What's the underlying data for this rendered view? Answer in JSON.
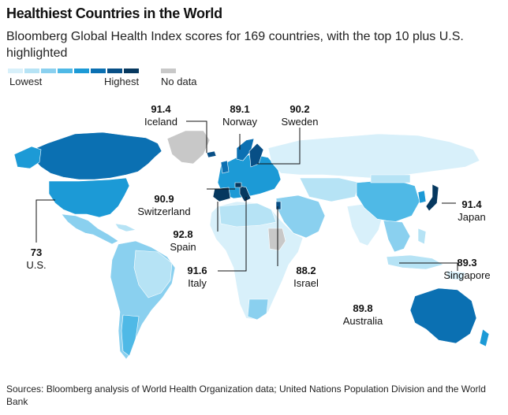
{
  "title": "Healthiest Countries in the World",
  "subtitle": "Bloomberg Global Health Index scores for 169 countries, with the top 10 plus U.S. highlighted",
  "legend": {
    "lowest_label": "Lowest",
    "highest_label": "Highest",
    "no_data_label": "No data",
    "scale_colors": [
      "#d8f0fa",
      "#b6e3f5",
      "#8ad0ef",
      "#4fb9e6",
      "#1c9ad6",
      "#0b70b2",
      "#084f86",
      "#06385f"
    ],
    "no_data_color": "#c8c8c8"
  },
  "highlighted": [
    {
      "country": "Iceland",
      "score": "91.4"
    },
    {
      "country": "Norway",
      "score": "89.1"
    },
    {
      "country": "Sweden",
      "score": "90.2"
    },
    {
      "country": "Switzerland",
      "score": "90.9"
    },
    {
      "country": "Japan",
      "score": "91.4"
    },
    {
      "country": "Spain",
      "score": "92.8"
    },
    {
      "country": "U.S.",
      "score": "73"
    },
    {
      "country": "Singapore",
      "score": "89.3"
    },
    {
      "country": "Italy",
      "score": "91.6"
    },
    {
      "country": "Israel",
      "score": "88.2"
    },
    {
      "country": "Australia",
      "score": "89.8"
    }
  ],
  "source": "Sources: Bloomberg analysis of World Health Organization data; United Nations Population Division and the World Bank"
}
